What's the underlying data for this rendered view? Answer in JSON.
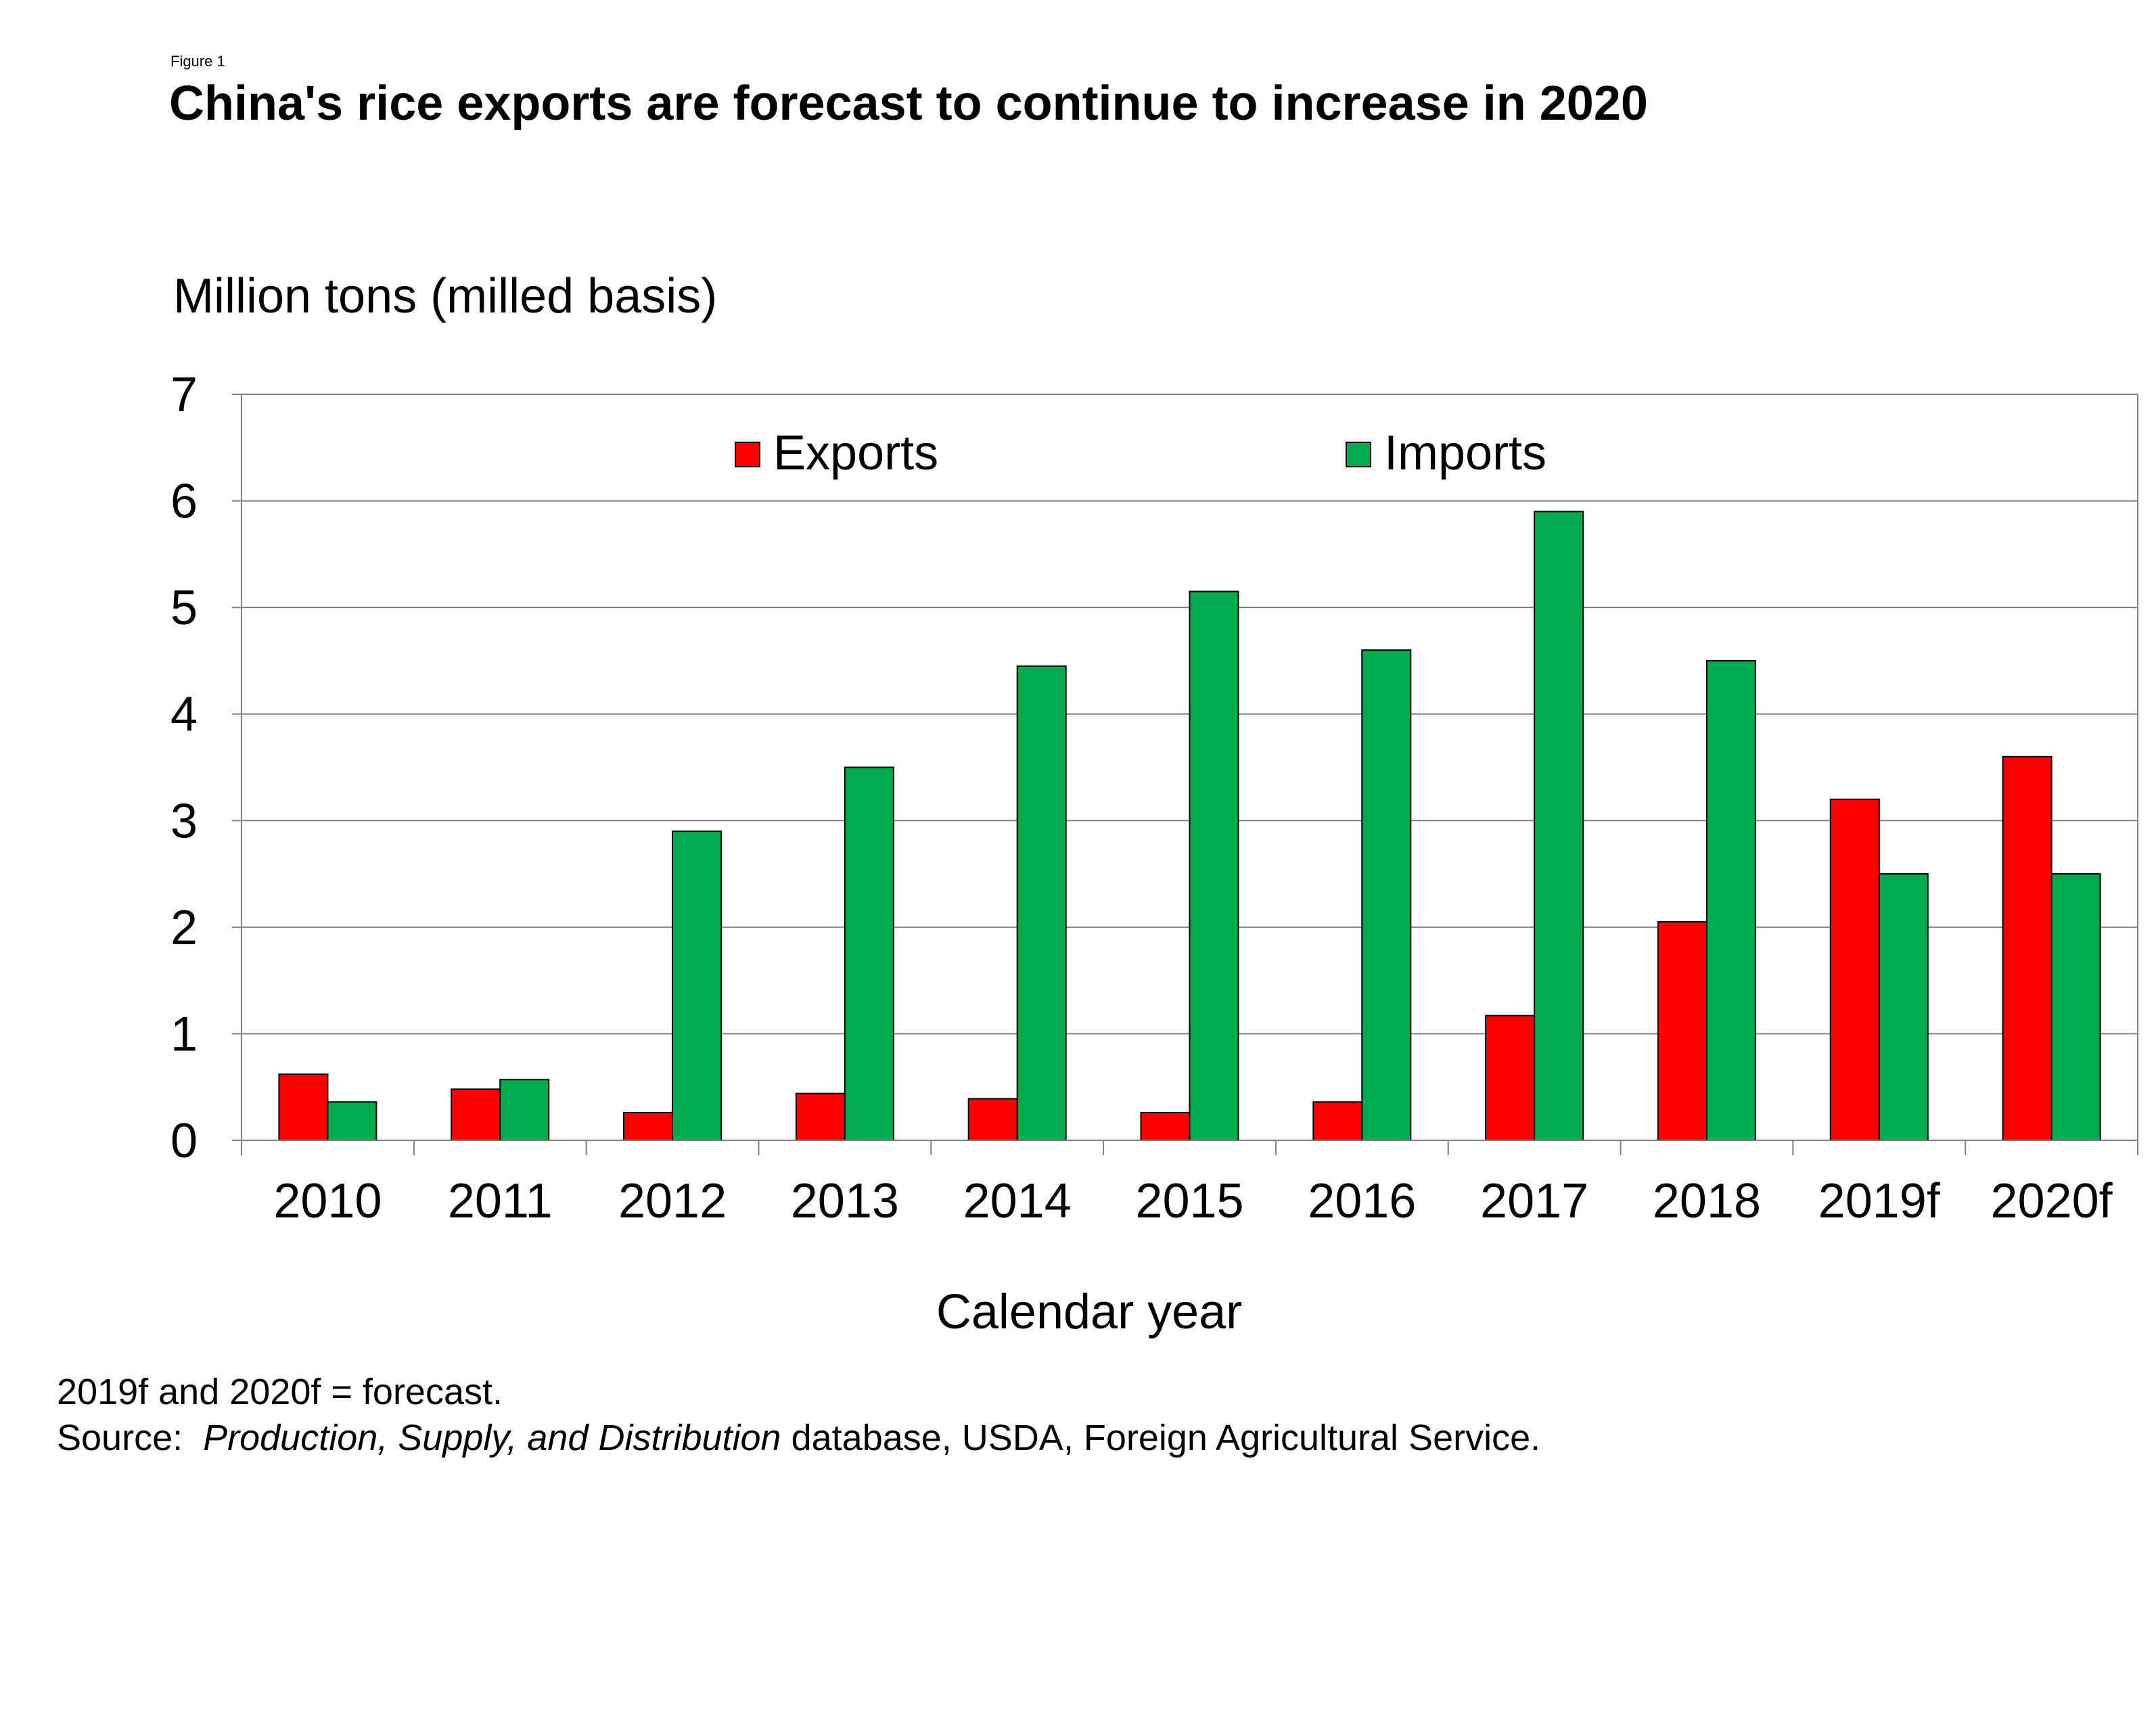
{
  "figure_label": "Figure 1",
  "title": "China's rice exports are forecast to continue to increase in 2020",
  "notes": {
    "forecast_note": "2019f and 2020f = forecast.",
    "source_prefix": "Source:  ",
    "source_italic": "Production, Supply, and Distribution",
    "source_suffix": " database, USDA, Foreign Agricultural Service."
  },
  "colors": {
    "exports": "#ff0000",
    "imports": "#00aa4f",
    "grid": "#808080",
    "axis": "#808080"
  },
  "chart_data": {
    "type": "bar",
    "title": "China's rice exports are forecast to continue to increase in 2020",
    "ylabel": "Million tons (milled basis)",
    "xlabel": "Calendar year",
    "ylim": [
      0,
      7
    ],
    "yticks": [
      0,
      1,
      2,
      3,
      4,
      5,
      6,
      7
    ],
    "grid": true,
    "legend": "top-center",
    "categories": [
      "2010",
      "2011",
      "2012",
      "2013",
      "2014",
      "2015",
      "2016",
      "2017",
      "2018",
      "2019f",
      "2020f"
    ],
    "series": [
      {
        "name": "Exports",
        "color": "#ff0000",
        "values": [
          0.62,
          0.48,
          0.26,
          0.44,
          0.39,
          0.26,
          0.36,
          1.17,
          2.05,
          3.2,
          3.6
        ]
      },
      {
        "name": "Imports",
        "color": "#00aa4f",
        "values": [
          0.36,
          0.57,
          2.9,
          3.5,
          4.45,
          5.15,
          4.6,
          5.9,
          4.5,
          2.5,
          2.5
        ]
      }
    ]
  }
}
